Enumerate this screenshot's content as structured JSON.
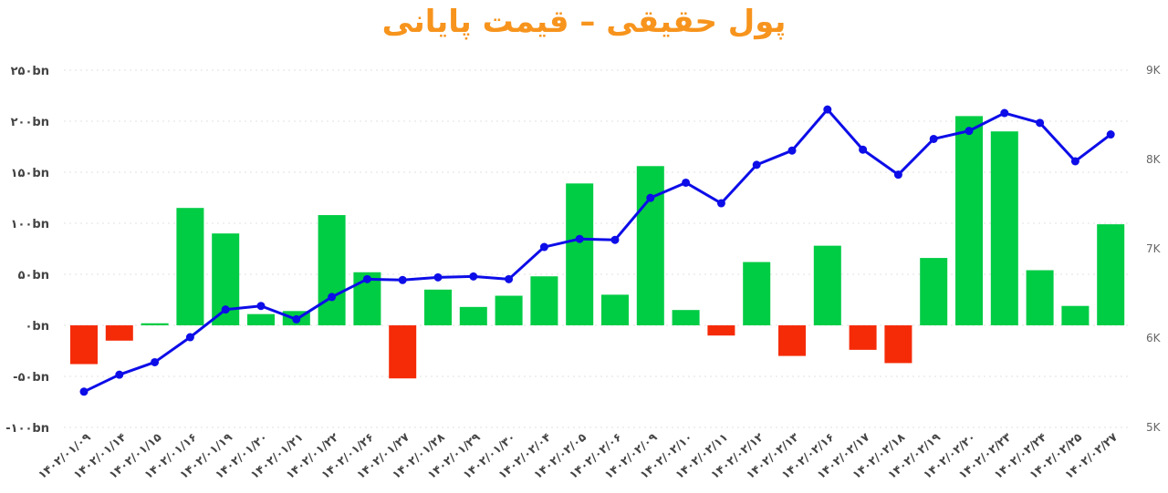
{
  "chart_data": {
    "type": "bar",
    "title": "پول حقیقی – قیمت پایانی",
    "colors": {
      "positive_bar": "#00cc44",
      "negative_bar": "#f52b08",
      "line": "#0d0de8",
      "title": "#f7941d"
    },
    "grid": true,
    "categories": [
      "۱۴۰۲/۰۱/۰۹",
      "۱۴۰۲/۰۱/۱۴",
      "۱۴۰۲/۰۱/۱۵",
      "۱۴۰۲/۰۱/۱۶",
      "۱۴۰۲/۰۱/۱۹",
      "۱۴۰۲/۰۱/۲۰",
      "۱۴۰۲/۰۱/۲۱",
      "۱۴۰۲/۰۱/۲۲",
      "۱۴۰۲/۰۱/۲۶",
      "۱۴۰۲/۰۱/۲۷",
      "۱۴۰۲/۰۱/۲۸",
      "۱۴۰۲/۰۱/۲۹",
      "۱۴۰۲/۰۱/۳۰",
      "۱۴۰۲/۰۲/۰۴",
      "۱۴۰۲/۰۲/۰۵",
      "۱۴۰۲/۰۲/۰۶",
      "۱۴۰۲/۰۲/۰۹",
      "۱۴۰۲/۰۲/۱۰",
      "۱۴۰۲/۰۲/۱۱",
      "۱۴۰۲/۰۲/۱۲",
      "۱۴۰۲/۰۲/۱۳",
      "۱۴۰۲/۰۲/۱۶",
      "۱۴۰۲/۰۲/۱۷",
      "۱۴۰۲/۰۲/۱۸",
      "۱۴۰۲/۰۲/۱۹",
      "۱۴۰۲/۰۲/۲۰",
      "۱۴۰۲/۰۲/۲۳",
      "۱۴۰۲/۰۲/۲۴",
      "۱۴۰۲/۰۲/۲۵",
      "۱۴۰۲/۰۲/۲۷"
    ],
    "series": [
      {
        "axis": "left",
        "kind": "bar",
        "unit": "bn",
        "values": [
          -38,
          -15,
          2,
          115,
          90,
          11,
          14,
          108,
          52,
          -52,
          35,
          18,
          29,
          48,
          139,
          30,
          156,
          15,
          -10,
          62,
          -30,
          78,
          -24,
          -37,
          66,
          205,
          190,
          54,
          19,
          99
        ]
      },
      {
        "axis": "right",
        "kind": "line",
        "values": [
          5400,
          5590,
          5730,
          6010,
          6320,
          6360,
          6210,
          6460,
          6660,
          6650,
          6680,
          6690,
          6660,
          7020,
          7110,
          7100,
          7570,
          7740,
          7510,
          7940,
          8100,
          8560,
          8110,
          7830,
          8230,
          8320,
          8520,
          8410,
          7980,
          8280
        ]
      }
    ],
    "y_left": {
      "ylim": [
        -100,
        250
      ],
      "ticks": [
        "-۱۰۰bn",
        "-۵۰bn",
        "۰bn",
        "۵۰bn",
        "۱۰۰bn",
        "۱۵۰bn",
        "۲۰۰bn",
        "۲۵۰bn"
      ],
      "tick_values": [
        -100,
        -50,
        0,
        50,
        100,
        150,
        200,
        250
      ]
    },
    "y_right": {
      "ylim": [
        5000,
        9000
      ],
      "ticks": [
        "5K",
        "6K",
        "7K",
        "8K",
        "9K"
      ],
      "tick_values": [
        5000,
        6000,
        7000,
        8000,
        9000
      ]
    }
  }
}
